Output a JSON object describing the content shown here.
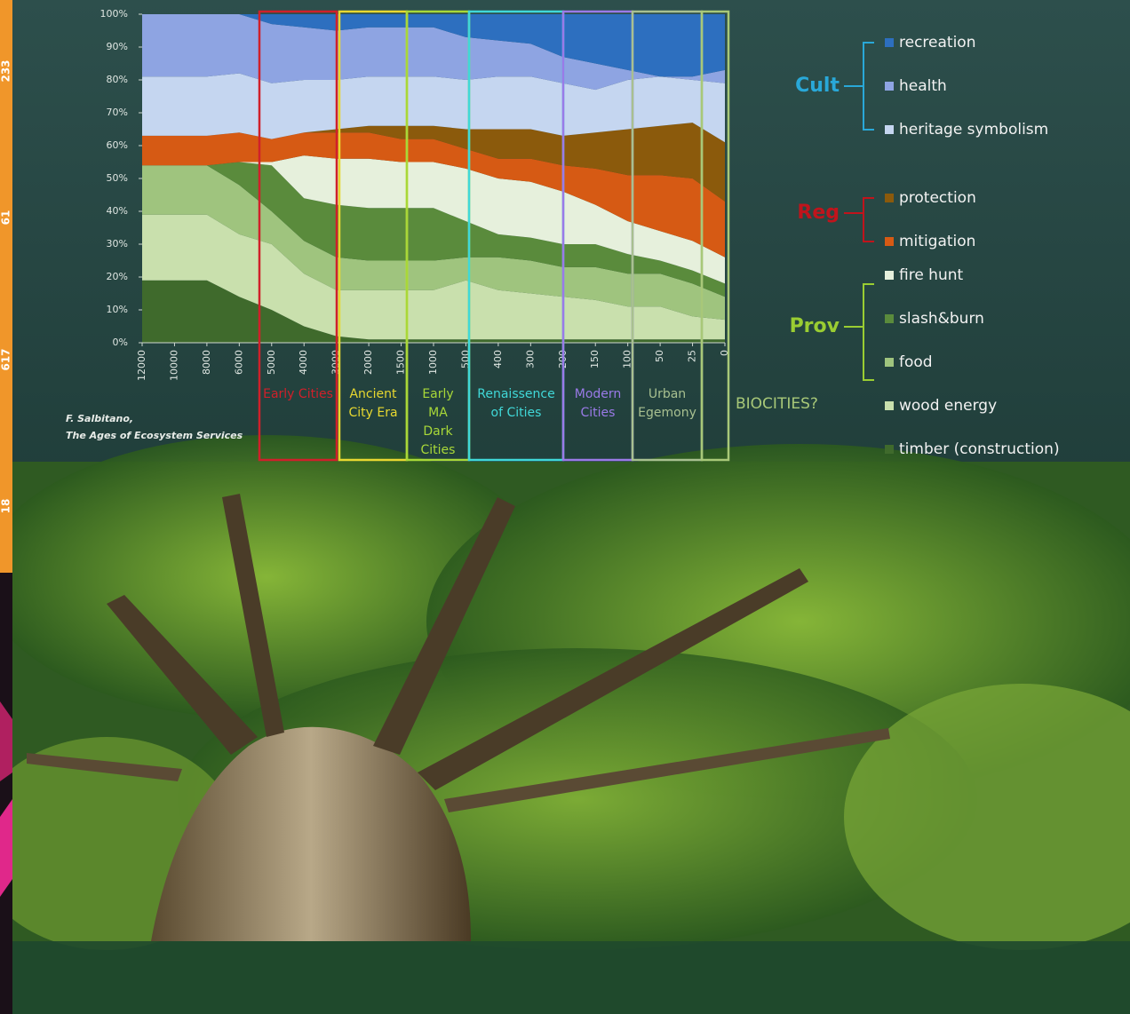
{
  "sidebar": [
    "233",
    "61",
    "617",
    "18"
  ],
  "chart_data": {
    "type": "stacked_area",
    "categories": [
      "12000",
      "10000",
      "8000",
      "6000",
      "5000",
      "4000",
      "3000",
      "2000",
      "1500",
      "1000",
      "500",
      "400",
      "300",
      "200",
      "150",
      "100",
      "50",
      "25",
      "0"
    ],
    "ylim": [
      0,
      100
    ],
    "yticks": [
      {
        "value": 0,
        "label": "0%"
      },
      {
        "value": 10,
        "label": "10%"
      },
      {
        "value": 20,
        "label": "20%"
      },
      {
        "value": 30,
        "label": "30%"
      },
      {
        "value": 40,
        "label": "40%"
      },
      {
        "value": 50,
        "label": "50%"
      },
      {
        "value": 60,
        "label": "60%"
      },
      {
        "value": 70,
        "label": "70%"
      },
      {
        "value": 80,
        "label": "80%"
      },
      {
        "value": 90,
        "label": "90%"
      },
      {
        "value": 100,
        "label": "100%"
      }
    ],
    "series": [
      {
        "name": "recreation",
        "color": "#2d6fbf",
        "values": [
          0,
          0,
          0,
          0,
          3,
          4,
          5,
          4,
          4,
          4,
          7,
          8,
          9,
          13,
          15,
          17,
          19,
          19,
          17
        ]
      },
      {
        "name": "health",
        "color": "#8ea4e2",
        "values": [
          19,
          19,
          19,
          18,
          18,
          16,
          15,
          15,
          15,
          15,
          13,
          11,
          10,
          8,
          8,
          3,
          0,
          1,
          4
        ]
      },
      {
        "name": "heritage symbolism",
        "color": "#c5d6f0",
        "values": [
          18,
          18,
          18,
          18,
          17,
          16,
          15,
          15,
          15,
          15,
          15,
          16,
          16,
          16,
          13,
          15,
          15,
          13,
          18
        ]
      },
      {
        "name": "protection",
        "color": "#8b5a0c",
        "values": [
          0,
          0,
          0,
          0,
          0,
          0,
          1,
          2,
          4,
          4,
          6,
          9,
          9,
          9,
          11,
          14,
          15,
          17,
          18
        ]
      },
      {
        "name": "mitigation",
        "color": "#d65a14",
        "values": [
          9,
          9,
          9,
          9,
          7,
          7,
          8,
          8,
          7,
          7,
          6,
          6,
          7,
          8,
          11,
          14,
          17,
          19,
          17
        ]
      },
      {
        "name": "fire hunt",
        "color": "#e6f0dc",
        "values": [
          0,
          0,
          0,
          0,
          1,
          13,
          14,
          15,
          14,
          14,
          16,
          17,
          17,
          16,
          12,
          10,
          9,
          9,
          8
        ]
      },
      {
        "name": "slash&burn",
        "color": "#5a8b3c",
        "values": [
          0,
          0,
          0,
          7,
          14,
          13,
          16,
          16,
          16,
          16,
          11,
          7,
          7,
          7,
          7,
          6,
          4,
          4,
          4
        ]
      },
      {
        "name": "food",
        "color": "#9fc47e",
        "values": [
          15,
          15,
          15,
          15,
          10,
          10,
          10,
          9,
          9,
          9,
          7,
          10,
          10,
          9,
          10,
          10,
          10,
          10,
          7
        ]
      },
      {
        "name": "wood energy",
        "color": "#c9e0ad",
        "values": [
          20,
          20,
          20,
          19,
          20,
          16,
          14,
          15,
          15,
          15,
          18,
          15,
          14,
          13,
          12,
          10,
          10,
          7,
          6
        ]
      },
      {
        "name": "timber (construction)",
        "color": "#3f6a2c",
        "values": [
          19,
          19,
          19,
          14,
          10,
          5,
          2,
          1,
          1,
          1,
          1,
          1,
          1,
          1,
          1,
          1,
          1,
          1,
          1
        ]
      }
    ],
    "groups": [
      {
        "label": "Cult",
        "color": "#29a8d8"
      },
      {
        "label": "Reg",
        "color": "#c0141c"
      },
      {
        "label": "Prov",
        "color": "#9acd32"
      }
    ],
    "eras": [
      {
        "lines": [
          "Early Cities"
        ],
        "color": "#d0202a"
      },
      {
        "lines": [
          "Ancient",
          "City Era"
        ],
        "color": "#e8d830"
      },
      {
        "lines": [
          "Early",
          "MA",
          "Dark",
          "Cities"
        ],
        "color": "#a8d838"
      },
      {
        "lines": [
          "Renaissence",
          "of Cities"
        ],
        "color": "#40d8d8"
      },
      {
        "lines": [
          "Modern",
          "Cities"
        ],
        "color": "#9a7ae8"
      },
      {
        "lines": [
          "Urban",
          "Egemony"
        ],
        "color": "#a8c090"
      }
    ],
    "era_note": {
      "text": "BIOCITIES?",
      "color": "#a8c878"
    },
    "credit": [
      "F. Salbitano,",
      "The Ages of Ecosystem Services"
    ]
  }
}
